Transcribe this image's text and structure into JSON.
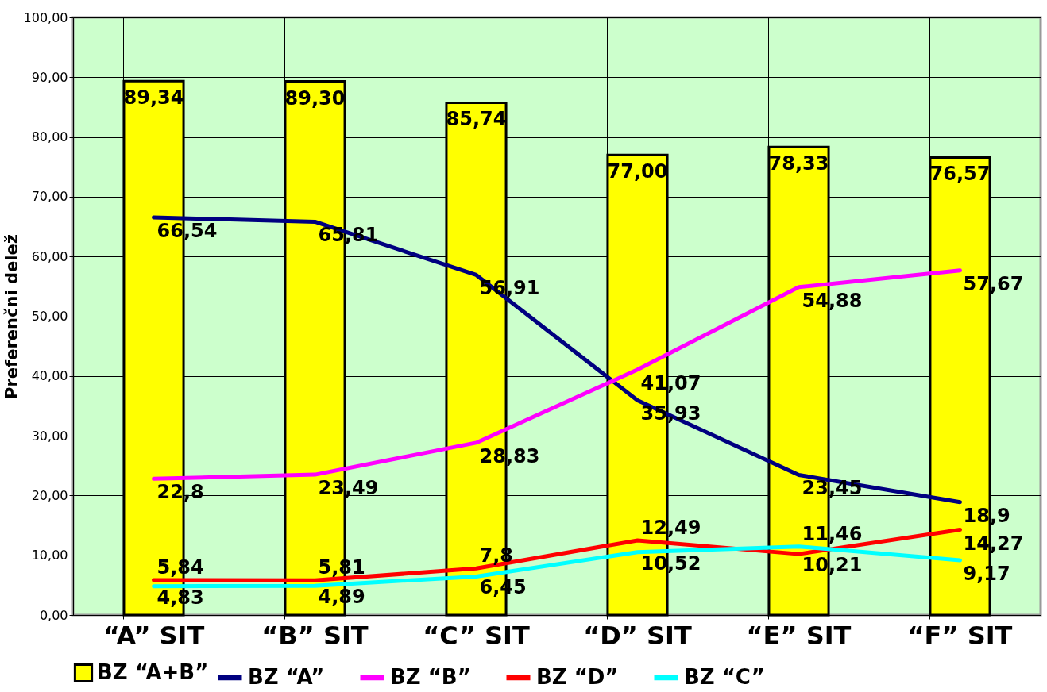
{
  "chart_data": {
    "type": "bar",
    "ylabel": "Preferenčni delež",
    "categories": [
      "“A” SIT",
      "“B” SIT",
      "“C” SIT",
      "“D” SIT",
      "“E” SIT",
      "“F” SIT"
    ],
    "ylim": [
      0,
      100
    ],
    "yticks": [
      {
        "value": 0,
        "label": "0,00"
      },
      {
        "value": 10,
        "label": "10,00"
      },
      {
        "value": 20,
        "label": "20,00"
      },
      {
        "value": 30,
        "label": "30,00"
      },
      {
        "value": 40,
        "label": "40,00"
      },
      {
        "value": 50,
        "label": "50,00"
      },
      {
        "value": 60,
        "label": "60,00"
      },
      {
        "value": 70,
        "label": "70,00"
      },
      {
        "value": 80,
        "label": "80,00"
      },
      {
        "value": 90,
        "label": "90,00"
      },
      {
        "value": 100,
        "label": "100,00"
      }
    ],
    "grid": true,
    "legend": "bottom",
    "series": [
      {
        "name": "BZ “A+B”",
        "color": "#ffff00",
        "values": [
          89.34,
          89.3,
          85.74,
          77.0,
          78.33,
          76.57
        ],
        "value_labels": [
          "89,34",
          "89,30",
          "85,74",
          "77,00",
          "78,33",
          "76,57"
        ]
      },
      {
        "type": "line",
        "name": "BZ “A”",
        "color": "#000080",
        "values": [
          66.54,
          65.81,
          56.91,
          35.93,
          23.45,
          18.9
        ],
        "value_labels": [
          "66,54",
          "65,81",
          "56,91",
          "35,93",
          "23,45",
          "18,9"
        ]
      },
      {
        "type": "line",
        "name": "BZ “B”",
        "color": "#ff00ff",
        "values": [
          22.8,
          23.49,
          28.83,
          41.07,
          54.88,
          57.67
        ],
        "value_labels": [
          "22,8",
          "23,49",
          "28,83",
          "41,07",
          "54,88",
          "57,67"
        ]
      },
      {
        "type": "line",
        "name": "BZ “D”",
        "color": "#ff0000",
        "values": [
          5.84,
          5.81,
          7.8,
          12.49,
          10.21,
          14.27
        ],
        "value_labels": [
          "5,84",
          "5,81",
          "7,8",
          "12,49",
          "10,21",
          "14,27"
        ]
      },
      {
        "type": "line",
        "name": "BZ “C”",
        "color": "#00ffff",
        "values": [
          4.83,
          4.89,
          6.45,
          10.52,
          11.46,
          9.17
        ],
        "value_labels": [
          "4,83",
          "4,89",
          "6,45",
          "10,52",
          "11,46",
          "9,17"
        ]
      }
    ]
  }
}
